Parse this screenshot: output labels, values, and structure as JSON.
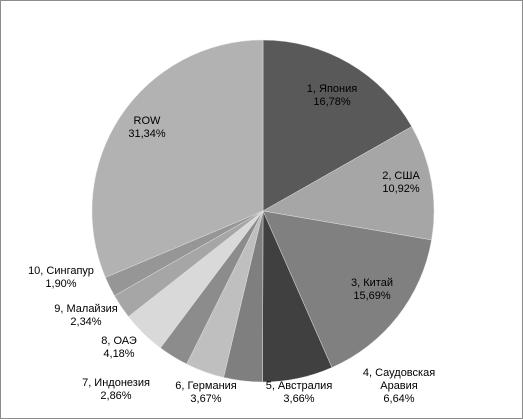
{
  "chart_data": {
    "type": "pie",
    "categories": [
      "1, Япония",
      "2, США",
      "3, Китай",
      "4, Саудовская Аравия",
      "5, Австралия",
      "6, Германия",
      "7, Индонезия",
      "8, ОАЭ",
      "9, Малайзия",
      "10, Сингапур",
      "ROW"
    ],
    "values": [
      16.78,
      10.92,
      15.69,
      6.64,
      3.66,
      3.67,
      2.86,
      4.18,
      2.34,
      1.9,
      31.34
    ],
    "value_labels": [
      "16,78%",
      "10,92%",
      "15,69%",
      "6,64%",
      "3,66%",
      "3,67%",
      "2,86%",
      "4,18%",
      "2,34%",
      "1,90%",
      "31,34%"
    ],
    "colors": [
      "#595959",
      "#a6a6a6",
      "#808080",
      "#404040",
      "#7f7f7f",
      "#bfbfbf",
      "#8c8c8c",
      "#d9d9d9",
      "#a6a6a6",
      "#969696",
      "#b2b2b2"
    ]
  }
}
